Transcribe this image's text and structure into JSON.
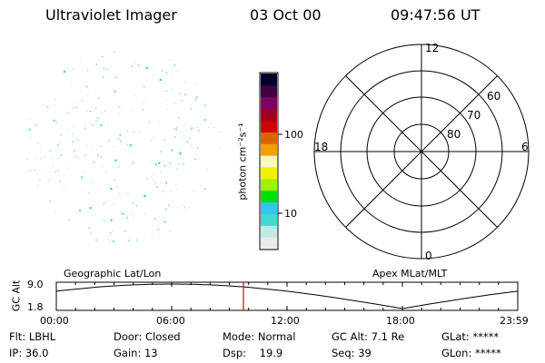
{
  "header": {
    "title": "Ultraviolet Imager",
    "date": "03 Oct 00",
    "time": "09:47:56 UT"
  },
  "colorbar": {
    "label": "photon cm⁻²s⁻¹",
    "ticks": [
      "100",
      "10"
    ]
  },
  "polar_plot": {
    "mlt_labels": {
      "top": "12",
      "left": "18",
      "right": "6",
      "bottom": "0"
    },
    "lat_labels": [
      "60",
      "70",
      "80"
    ]
  },
  "timeline": {
    "left_label": "Geographic Lat/Lon",
    "right_label": "Apex MLat/MLT",
    "y_title": "GC Alt",
    "y_ticks": [
      "9.0",
      "1.8"
    ],
    "x_ticks": [
      "00:00",
      "06:00",
      "12:00",
      "18:00",
      "23:59"
    ],
    "current_time_color": "#e00000"
  },
  "status": {
    "filter": "Flt: LBHL",
    "ip": "IP: 36.0",
    "door": "Door: Closed",
    "gain": "Gain: 13",
    "mode": "Mode: Normal",
    "dsp": "Dsp:    19.9",
    "gc_alt": "GC Alt: 7.1 Re",
    "seq": "Seq: 39",
    "glat": "GLat: *****",
    "glon": "GLon: *****"
  },
  "colors": {
    "colorbar_stops": [
      "#e8ecec",
      "#c4e8e8",
      "#40d8d0",
      "#30c8f0",
      "#00e000",
      "#a0f000",
      "#f0f000",
      "#f8f8c0",
      "#f0a000",
      "#e06000",
      "#d00000",
      "#a00020",
      "#800060",
      "#400040",
      "#000030"
    ]
  }
}
